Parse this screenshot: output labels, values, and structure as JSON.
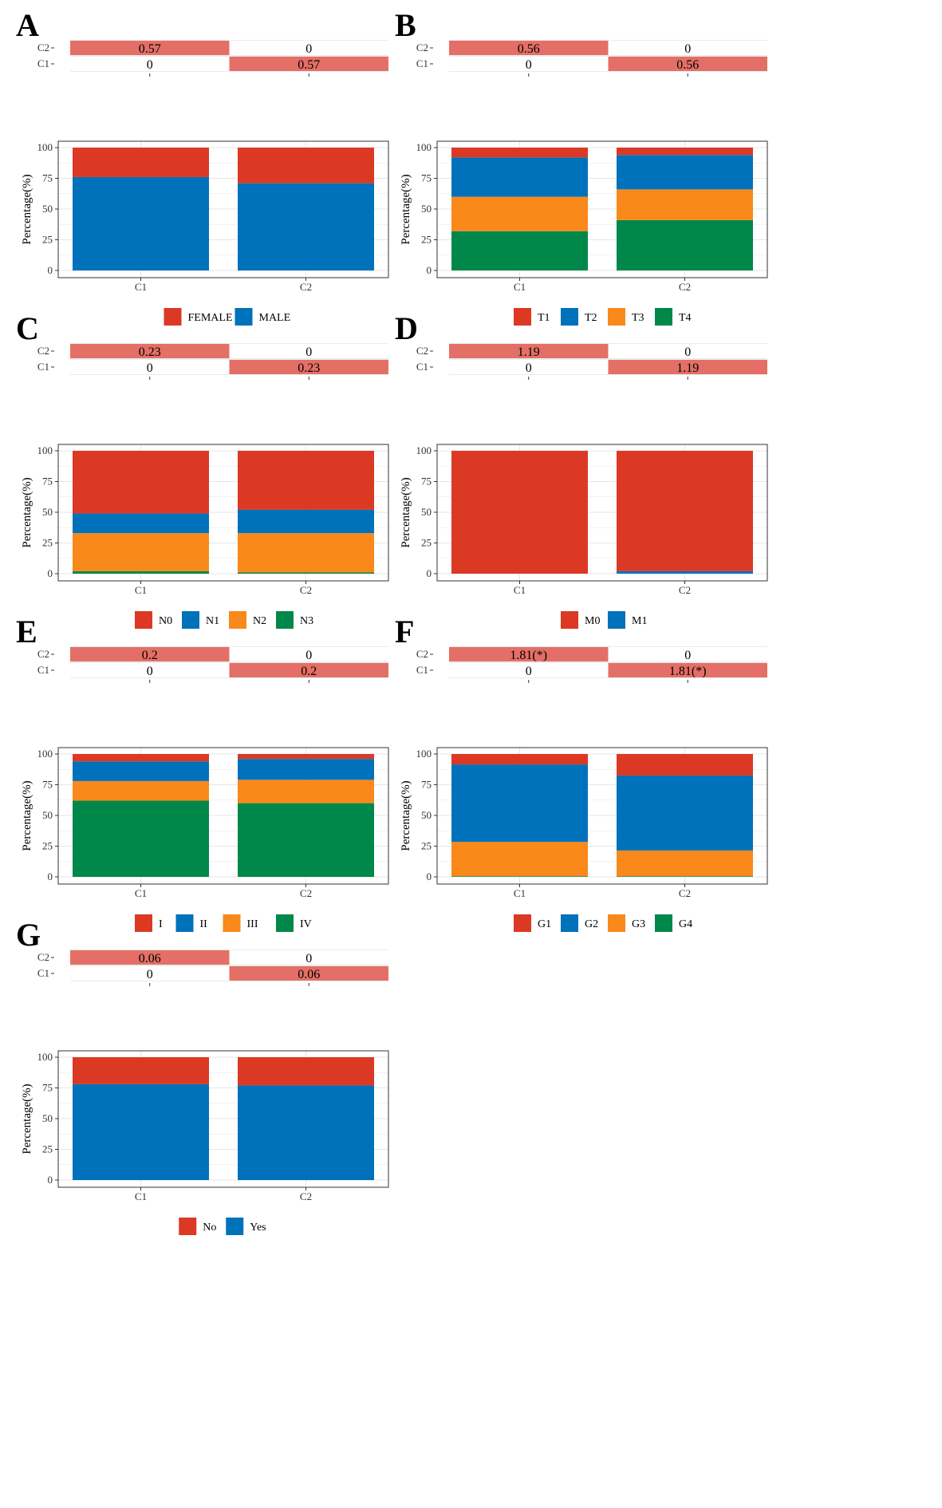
{
  "colors": {
    "red": "#DC3924",
    "blue": "#0071BB",
    "orange": "#F8891A",
    "green": "#00884A",
    "cell_highlight": "#E46F66",
    "strip_bg": "#EBEBEB",
    "grid": "#E6E6E6",
    "frame": "#333333"
  },
  "chart_data": [
    {
      "panel": "A",
      "type": "bar",
      "stacked": true,
      "categories": [
        "C1",
        "C2"
      ],
      "series": [
        {
          "name": "MALE",
          "color": "blue",
          "values": [
            76,
            71
          ]
        },
        {
          "name": "FEMALE",
          "color": "red",
          "values": [
            24,
            29
          ]
        }
      ],
      "legend": [
        "FEMALE",
        "MALE"
      ],
      "legend_colors": [
        "red",
        "blue"
      ],
      "ylabel": "Percentage(%)",
      "ylim": [
        0,
        100
      ],
      "yticks": [
        "0",
        "25",
        "50",
        "75",
        "100"
      ],
      "heatmap": {
        "rows": [
          "C2",
          "C1"
        ],
        "cols": [
          "C1",
          "C2"
        ],
        "cells": [
          [
            "0.57",
            "0"
          ],
          [
            "0",
            "0.57"
          ]
        ],
        "highlight": [
          [
            true,
            false
          ],
          [
            false,
            true
          ]
        ]
      }
    },
    {
      "panel": "B",
      "type": "bar",
      "stacked": true,
      "categories": [
        "C1",
        "C2"
      ],
      "series": [
        {
          "name": "T4",
          "color": "green",
          "values": [
            32,
            41
          ]
        },
        {
          "name": "T3",
          "color": "orange",
          "values": [
            28,
            25
          ]
        },
        {
          "name": "T2",
          "color": "blue",
          "values": [
            32,
            28
          ]
        },
        {
          "name": "T1",
          "color": "red",
          "values": [
            8,
            6
          ]
        }
      ],
      "legend": [
        "T1",
        "T2",
        "T3",
        "T4"
      ],
      "legend_colors": [
        "red",
        "blue",
        "orange",
        "green"
      ],
      "ylabel": "Percentage(%)",
      "ylim": [
        0,
        100
      ],
      "yticks": [
        "0",
        "25",
        "50",
        "75",
        "100"
      ],
      "heatmap": {
        "rows": [
          "C2",
          "C1"
        ],
        "cols": [
          "C1",
          "C2"
        ],
        "cells": [
          [
            "0.56",
            "0"
          ],
          [
            "0",
            "0.56"
          ]
        ],
        "highlight": [
          [
            true,
            false
          ],
          [
            false,
            true
          ]
        ]
      }
    },
    {
      "panel": "C",
      "type": "bar",
      "stacked": true,
      "categories": [
        "C1",
        "C2"
      ],
      "series": [
        {
          "name": "N3",
          "color": "green",
          "values": [
            2,
            1
          ]
        },
        {
          "name": "N2",
          "color": "orange",
          "values": [
            31,
            32
          ]
        },
        {
          "name": "N1",
          "color": "blue",
          "values": [
            16,
            19
          ]
        },
        {
          "name": "N0",
          "color": "red",
          "values": [
            51,
            48
          ]
        }
      ],
      "legend": [
        "N0",
        "N1",
        "N2",
        "N3"
      ],
      "legend_colors": [
        "red",
        "blue",
        "orange",
        "green"
      ],
      "ylabel": "Percentage(%)",
      "ylim": [
        0,
        100
      ],
      "yticks": [
        "0",
        "25",
        "50",
        "75",
        "100"
      ],
      "heatmap": {
        "rows": [
          "C2",
          "C1"
        ],
        "cols": [
          "C1",
          "C2"
        ],
        "cells": [
          [
            "0.23",
            "0"
          ],
          [
            "0",
            "0.23"
          ]
        ],
        "highlight": [
          [
            true,
            false
          ],
          [
            false,
            true
          ]
        ]
      }
    },
    {
      "panel": "D",
      "type": "bar",
      "stacked": true,
      "categories": [
        "C1",
        "C2"
      ],
      "series": [
        {
          "name": "M1",
          "color": "blue",
          "values": [
            0,
            2
          ]
        },
        {
          "name": "M0",
          "color": "red",
          "values": [
            100,
            98
          ]
        }
      ],
      "legend": [
        "M0",
        "M1"
      ],
      "legend_colors": [
        "red",
        "blue"
      ],
      "ylabel": "Percentage(%)",
      "ylim": [
        0,
        100
      ],
      "yticks": [
        "0",
        "25",
        "50",
        "75",
        "100"
      ],
      "heatmap": {
        "rows": [
          "C2",
          "C1"
        ],
        "cols": [
          "C1",
          "C2"
        ],
        "cells": [
          [
            "1.19",
            "0"
          ],
          [
            "0",
            "1.19"
          ]
        ],
        "highlight": [
          [
            true,
            false
          ],
          [
            false,
            true
          ]
        ]
      }
    },
    {
      "panel": "E",
      "type": "bar",
      "stacked": true,
      "categories": [
        "C1",
        "C2"
      ],
      "series": [
        {
          "name": "IV",
          "color": "green",
          "values": [
            62,
            60
          ]
        },
        {
          "name": "III",
          "color": "orange",
          "values": [
            16,
            19
          ]
        },
        {
          "name": "II",
          "color": "blue",
          "values": [
            16,
            17
          ]
        },
        {
          "name": "I",
          "color": "red",
          "values": [
            6,
            4
          ]
        }
      ],
      "legend": [
        "I",
        "II",
        "III",
        "IV"
      ],
      "legend_colors": [
        "red",
        "blue",
        "orange",
        "green"
      ],
      "ylabel": "Percentage(%)",
      "ylim": [
        0,
        100
      ],
      "yticks": [
        "0",
        "25",
        "50",
        "75",
        "100"
      ],
      "heatmap": {
        "rows": [
          "C2",
          "C1"
        ],
        "cols": [
          "C1",
          "C2"
        ],
        "cells": [
          [
            "0.2",
            "0"
          ],
          [
            "0",
            "0.2"
          ]
        ],
        "highlight": [
          [
            true,
            false
          ],
          [
            false,
            true
          ]
        ]
      }
    },
    {
      "panel": "F",
      "type": "bar",
      "stacked": true,
      "categories": [
        "C1",
        "C2"
      ],
      "series": [
        {
          "name": "G4",
          "color": "green",
          "values": [
            0.5,
            0.5
          ]
        },
        {
          "name": "G3",
          "color": "orange",
          "values": [
            28,
            21
          ]
        },
        {
          "name": "G2",
          "color": "blue",
          "values": [
            63,
            61
          ]
        },
        {
          "name": "G1",
          "color": "red",
          "values": [
            8.5,
            17.5
          ]
        }
      ],
      "legend": [
        "G1",
        "G2",
        "G3",
        "G4"
      ],
      "legend_colors": [
        "red",
        "blue",
        "orange",
        "green"
      ],
      "ylabel": "Percentage(%)",
      "ylim": [
        0,
        100
      ],
      "yticks": [
        "0",
        "25",
        "50",
        "75",
        "100"
      ],
      "heatmap": {
        "rows": [
          "C2",
          "C1"
        ],
        "cols": [
          "C1",
          "C2"
        ],
        "cells": [
          [
            "1.81(*)",
            "0"
          ],
          [
            "0",
            "1.81(*)"
          ]
        ],
        "highlight": [
          [
            true,
            false
          ],
          [
            false,
            true
          ]
        ]
      }
    },
    {
      "panel": "G",
      "type": "bar",
      "stacked": true,
      "categories": [
        "C1",
        "C2"
      ],
      "series": [
        {
          "name": "Yes",
          "color": "blue",
          "values": [
            78,
            77
          ]
        },
        {
          "name": "No",
          "color": "red",
          "values": [
            22,
            23
          ]
        }
      ],
      "legend": [
        "No",
        "Yes"
      ],
      "legend_colors": [
        "red",
        "blue"
      ],
      "ylabel": "Percentage(%)",
      "ylim": [
        0,
        100
      ],
      "yticks": [
        "0",
        "25",
        "50",
        "75",
        "100"
      ],
      "heatmap": {
        "rows": [
          "C2",
          "C1"
        ],
        "cols": [
          "C1",
          "C2"
        ],
        "cells": [
          [
            "0.06",
            "0"
          ],
          [
            "0",
            "0.06"
          ]
        ],
        "highlight": [
          [
            true,
            false
          ],
          [
            false,
            true
          ]
        ]
      }
    }
  ]
}
